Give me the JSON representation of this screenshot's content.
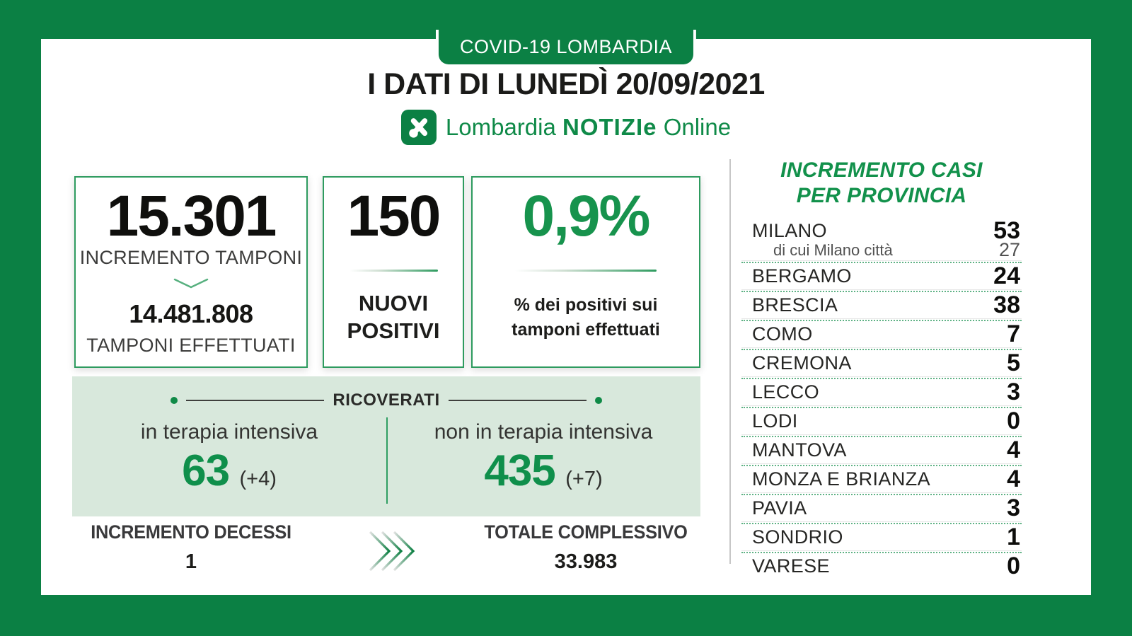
{
  "badge": {
    "label": "COVID-19 LOMBARDIA"
  },
  "header": {
    "title": "I DATI DI LUNEDÌ 20/09/2021"
  },
  "logo": {
    "name": "Lombardia",
    "wordmark": "NOTIZIe",
    "suffix": "Online"
  },
  "colors": {
    "brand_green": "#0B8044",
    "bright_green": "#17934D",
    "light_green_bg": "#D8E8DC",
    "dotted_line_green": "#5FB285"
  },
  "cards": {
    "tamponi": {
      "value": "15.301",
      "label": "INCREMENTO TAMPONI",
      "total_value": "14.481.808",
      "total_label": "TAMPONI EFFETTUATI"
    },
    "nuovi_positivi": {
      "value": "150",
      "label": "NUOVI POSITIVI"
    },
    "percentuale": {
      "value": "0,9%",
      "label_line1": "% dei positivi sui",
      "label_line2": "tamponi effettuati"
    }
  },
  "ricoverati": {
    "title": "RICOVERATI",
    "intensiva": {
      "label": "in terapia intensiva",
      "value": "63",
      "delta": "(+4)"
    },
    "non_intensiva": {
      "label": "non in terapia intensiva",
      "value": "435",
      "delta": "(+7)"
    }
  },
  "footer": {
    "decessi": {
      "label": "INCREMENTO DECESSI",
      "value": "1"
    },
    "totale": {
      "label": "TOTALE COMPLESSIVO",
      "value": "33.983"
    }
  },
  "province": {
    "title_line1": "INCREMENTO CASI",
    "title_line2": "PER PROVINCIA",
    "rows": [
      {
        "name": "MILANO",
        "value": "53",
        "sub_name": "di cui Milano città",
        "sub_value": "27"
      },
      {
        "name": "BERGAMO",
        "value": "24"
      },
      {
        "name": "BRESCIA",
        "value": "38"
      },
      {
        "name": "COMO",
        "value": "7"
      },
      {
        "name": "CREMONA",
        "value": "5"
      },
      {
        "name": "LECCO",
        "value": "3"
      },
      {
        "name": "LODI",
        "value": "0"
      },
      {
        "name": "MANTOVA",
        "value": "4"
      },
      {
        "name": "MONZA E BRIANZA",
        "value": "4"
      },
      {
        "name": "PAVIA",
        "value": "3"
      },
      {
        "name": "SONDRIO",
        "value": "1"
      },
      {
        "name": "VARESE",
        "value": "0"
      }
    ]
  },
  "chart_data": {
    "type": "table",
    "title": "COVID-19 Lombardia — I dati di lunedì 20/09/2021",
    "summary": {
      "incremento_tamponi": 15301,
      "tamponi_effettuati": 14481808,
      "nuovi_positivi": 150,
      "percentuale_positivi": "0,9%",
      "ricoverati_terapia_intensiva": 63,
      "ricoverati_terapia_intensiva_delta": 4,
      "ricoverati_non_terapia_intensiva": 435,
      "ricoverati_non_terapia_intensiva_delta": 7,
      "incremento_decessi": 1,
      "totale_complessivo_decessi": 33983
    },
    "categories": [
      "MILANO",
      "di cui Milano città",
      "BERGAMO",
      "BRESCIA",
      "COMO",
      "CREMONA",
      "LECCO",
      "LODI",
      "MANTOVA",
      "MONZA E BRIANZA",
      "PAVIA",
      "SONDRIO",
      "VARESE"
    ],
    "values": [
      53,
      27,
      24,
      38,
      7,
      5,
      3,
      0,
      4,
      4,
      3,
      1,
      0
    ],
    "series_label": "Incremento casi per provincia"
  }
}
